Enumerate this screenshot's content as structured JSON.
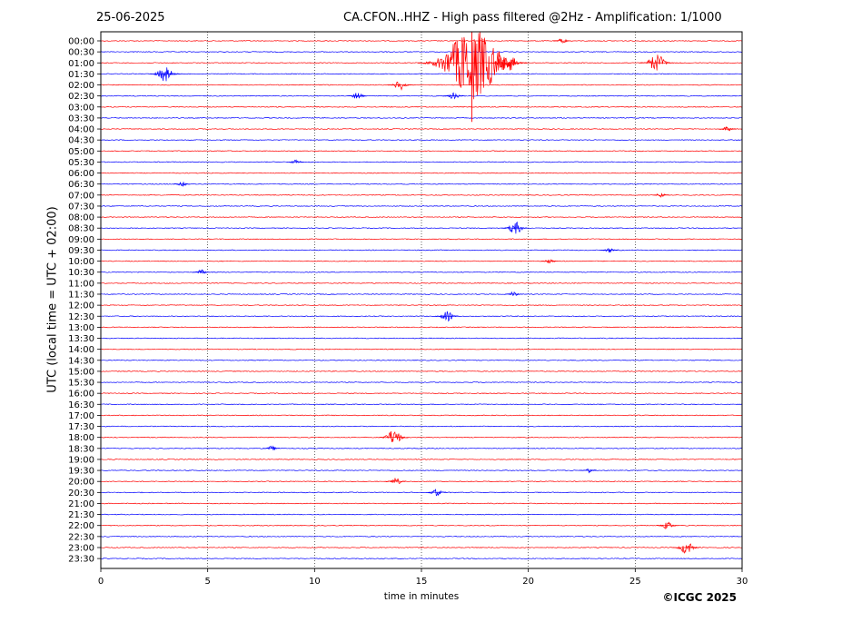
{
  "header": {
    "date": "25-06-2025",
    "title": "CA.CFON..HHZ - High pass filtered @2Hz - Amplification: 1/1000"
  },
  "footer": {
    "copyright": "©ICGC 2025"
  },
  "chart_data": {
    "type": "line",
    "title": "CA.CFON..HHZ - High pass filtered @2Hz - Amplification: 1/1000",
    "xlabel": "time in minutes",
    "ylabel": "UTC (local time = UTC + 02:00)",
    "xlim": [
      0,
      30
    ],
    "x_ticks": [
      0,
      5,
      10,
      15,
      20,
      25,
      30
    ],
    "vertical_grid_at": [
      5,
      10,
      15,
      20,
      25
    ],
    "grid": "vertical dotted",
    "trace_colors": [
      "#ff0000",
      "#0000ff"
    ],
    "rows": [
      "00:00",
      "00:30",
      "01:00",
      "01:30",
      "02:00",
      "02:30",
      "03:00",
      "03:30",
      "04:00",
      "04:30",
      "05:00",
      "05:30",
      "06:00",
      "06:30",
      "07:00",
      "07:30",
      "08:00",
      "08:30",
      "09:00",
      "09:30",
      "10:00",
      "10:30",
      "11:00",
      "11:30",
      "12:00",
      "12:30",
      "13:00",
      "13:30",
      "14:00",
      "14:30",
      "15:00",
      "15:30",
      "16:00",
      "16:30",
      "17:00",
      "17:30",
      "18:00",
      "18:30",
      "19:00",
      "19:30",
      "20:00",
      "20:30",
      "21:00",
      "21:30",
      "22:00",
      "22:30",
      "23:00",
      "23:30"
    ],
    "events": [
      {
        "row": "00:00",
        "minute": 21.6,
        "amp": 0.2
      },
      {
        "row": "01:00",
        "minute": 17.4,
        "amp": 3.0
      },
      {
        "row": "01:00",
        "minute": 19.0,
        "amp": 0.8
      },
      {
        "row": "01:00",
        "minute": 26.0,
        "amp": 0.7
      },
      {
        "row": "01:30",
        "minute": 3.0,
        "amp": 0.6
      },
      {
        "row": "02:00",
        "minute": 14.0,
        "amp": 0.4
      },
      {
        "row": "02:30",
        "minute": 12.0,
        "amp": 0.3
      },
      {
        "row": "02:30",
        "minute": 16.5,
        "amp": 0.3
      },
      {
        "row": "04:00",
        "minute": 29.3,
        "amp": 0.2
      },
      {
        "row": "05:30",
        "minute": 9.1,
        "amp": 0.2
      },
      {
        "row": "06:30",
        "minute": 3.8,
        "amp": 0.2
      },
      {
        "row": "07:00",
        "minute": 26.2,
        "amp": 0.2
      },
      {
        "row": "08:30",
        "minute": 19.4,
        "amp": 0.5
      },
      {
        "row": "09:30",
        "minute": 23.8,
        "amp": 0.2
      },
      {
        "row": "10:00",
        "minute": 21.0,
        "amp": 0.2
      },
      {
        "row": "10:30",
        "minute": 4.7,
        "amp": 0.2
      },
      {
        "row": "11:30",
        "minute": 19.3,
        "amp": 0.2
      },
      {
        "row": "12:30",
        "minute": 16.2,
        "amp": 0.4
      },
      {
        "row": "18:00",
        "minute": 13.7,
        "amp": 0.6
      },
      {
        "row": "18:30",
        "minute": 8.0,
        "amp": 0.2
      },
      {
        "row": "19:30",
        "minute": 22.8,
        "amp": 0.2
      },
      {
        "row": "20:00",
        "minute": 13.8,
        "amp": 0.3
      },
      {
        "row": "20:30",
        "minute": 15.7,
        "amp": 0.3
      },
      {
        "row": "22:00",
        "minute": 26.5,
        "amp": 0.3
      },
      {
        "row": "23:00",
        "minute": 27.4,
        "amp": 0.5
      }
    ]
  }
}
